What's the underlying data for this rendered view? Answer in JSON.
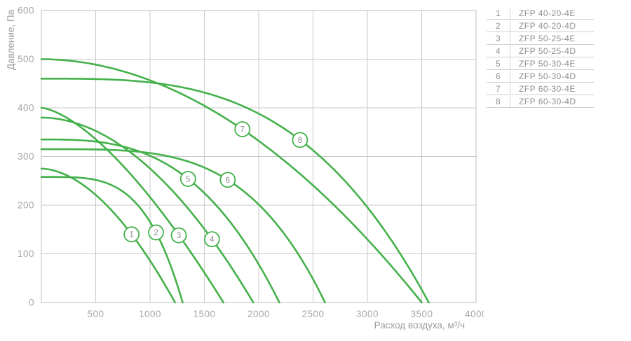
{
  "chart_data": {
    "type": "line",
    "title": "",
    "xlabel": "Расход воздуха, м³/ч",
    "ylabel": "Давление, Па",
    "xlim": [
      0,
      4000
    ],
    "ylim": [
      0,
      600
    ],
    "xticks": [
      500,
      1000,
      1500,
      2000,
      2500,
      3000,
      3500,
      4000
    ],
    "yticks": [
      0,
      100,
      200,
      300,
      400,
      500,
      600
    ],
    "grid": true,
    "curve_model": "pressure = p0 * (1 - (q/qmax)^exp)",
    "series": [
      {
        "num": "1",
        "name": "ZFP 40-20-4E",
        "p0": 275,
        "qmax": 1230,
        "exp": 1.81,
        "marker": {
          "q": 830,
          "p": 140
        }
      },
      {
        "num": "2",
        "name": "ZFP 40-20-4D",
        "p0": 258,
        "qmax": 1300,
        "exp": 3.91,
        "marker": {
          "q": 1055,
          "p": 144
        }
      },
      {
        "num": "3",
        "name": "ZFP 50-25-4E",
        "p0": 400,
        "qmax": 1675,
        "exp": 1.51,
        "marker": {
          "q": 1265,
          "p": 138
        }
      },
      {
        "num": "4",
        "name": "ZFP 50-25-4D",
        "p0": 380,
        "qmax": 1950,
        "exp": 1.93,
        "marker": {
          "q": 1570,
          "p": 130
        }
      },
      {
        "num": "5",
        "name": "ZFP 50-30-4E",
        "p0": 335,
        "qmax": 2190,
        "exp": 2.94,
        "marker": {
          "q": 1350,
          "p": 254
        }
      },
      {
        "num": "6",
        "name": "ZFP 50-30-4D",
        "p0": 315,
        "qmax": 2610,
        "exp": 3.83,
        "marker": {
          "q": 1715,
          "p": 252
        }
      },
      {
        "num": "7",
        "name": "ZFP 60-30-4E",
        "p0": 500,
        "qmax": 3500,
        "exp": 1.95,
        "marker": {
          "q": 1850,
          "p": 356
        }
      },
      {
        "num": "8",
        "name": "ZFP 60-30-4D",
        "p0": 460,
        "qmax": 3565,
        "exp": 3.21,
        "marker": {
          "q": 2380,
          "p": 334
        }
      }
    ],
    "legend_position": "right"
  },
  "legend": {
    "rows": [
      {
        "num": "1",
        "label": "ZFP 40-20-4E"
      },
      {
        "num": "2",
        "label": "ZFP 40-20-4D"
      },
      {
        "num": "3",
        "label": "ZFP 50-25-4E"
      },
      {
        "num": "4",
        "label": "ZFP 50-25-4D"
      },
      {
        "num": "5",
        "label": "ZFP 50-30-4E"
      },
      {
        "num": "6",
        "label": "ZFP 50-30-4D"
      },
      {
        "num": "7",
        "label": "ZFP 60-30-4E"
      },
      {
        "num": "8",
        "label": "ZFP 60-30-4D"
      }
    ]
  },
  "colors": {
    "curve": "#45b14b",
    "grid": "#c9c9c9",
    "tick_text": "#a6a6aa",
    "axis_title_text": "#9c9ca1",
    "marker_text": "#8f8f94",
    "legend_line": "#cfcfd2",
    "legend_text": "#8f8f94"
  }
}
